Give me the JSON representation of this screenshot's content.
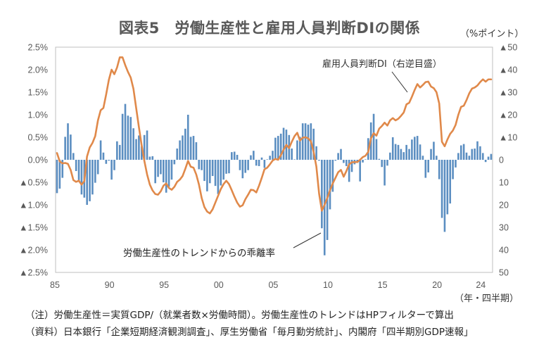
{
  "header": {
    "title": "図表5　労働生産性と雇用人員判断DIの関係",
    "right_unit": "（%ポイント）"
  },
  "annotations": {
    "di_label": "雇用人員判断DI（右逆目盛）",
    "productivity_label": "労働生産性のトレンドからの乖離率"
  },
  "notes": {
    "note": "（注）労働生産性＝実質GDP/（就業者数×労働時間）。労働生産性のトレンドはHPフィルターで算出",
    "source": "（資料）日本銀行「企業短期経済観測調査」、厚生労働省「毎月勤労統計」、内閣府「四半期別GDP速報」"
  },
  "colors": {
    "bar": "#5B8EC1",
    "line": "#E0894A",
    "frame": "#BFBFBF"
  },
  "chart_data": {
    "type": "bar",
    "title": "図表5　労働生産性と雇用人員判断DIの関係",
    "xlabel": "（年・四半期）",
    "x_frequency": "quarterly",
    "x_ticks": [
      {
        "label": "85",
        "index": 0
      },
      {
        "label": "90",
        "index": 20
      },
      {
        "label": "95",
        "index": 40
      },
      {
        "label": "00",
        "index": 60
      },
      {
        "label": "05",
        "index": 80
      },
      {
        "label": "10",
        "index": 100
      },
      {
        "label": "15",
        "index": 120
      },
      {
        "label": "20",
        "index": 140
      },
      {
        "label": "24",
        "index": 156
      }
    ],
    "left_axis": {
      "ylim": [
        -2.5,
        2.5
      ],
      "ticks": [
        2.5,
        2.0,
        1.5,
        1.0,
        0.5,
        0.0,
        -0.5,
        -1.0,
        -1.5,
        -2.0,
        -2.5
      ],
      "labels": [
        "2.5%",
        "2.0%",
        "1.5%",
        "1.0%",
        "0.5%",
        "0.0%",
        "▲0.5%",
        "▲1.0%",
        "▲1.5%",
        "▲2.0%",
        "▲2.5%"
      ]
    },
    "right_axis": {
      "ylim": [
        -50,
        50
      ],
      "reversed": true,
      "unit": "（%ポイント）",
      "ticks": [
        -50,
        -40,
        -30,
        -20,
        -10,
        0,
        10,
        20,
        30,
        40,
        50
      ],
      "labels": [
        "▲50",
        "▲40",
        "▲30",
        "▲20",
        "▲10",
        "0",
        "10",
        "20",
        "30",
        "40",
        "50"
      ]
    },
    "grid": false,
    "legend": "none (inline annotations)",
    "series": [
      {
        "name": "労働生産性のトレンドからの乖離率",
        "type": "bar",
        "axis": "left",
        "unit": "%",
        "values": [
          -0.74,
          -0.64,
          -0.4,
          0.51,
          0.81,
          0.56,
          0.15,
          -0.25,
          -0.48,
          -0.77,
          -0.84,
          -1.0,
          -0.92,
          -0.77,
          -0.51,
          -0.32,
          0.43,
          0.16,
          -0.09,
          -0.02,
          -0.44,
          -0.23,
          0.41,
          0.33,
          1.02,
          1.24,
          0.98,
          0.95,
          0.7,
          0.46,
          0.54,
          0.3,
          0.55,
          0.65,
          0.07,
          0.08,
          -0.52,
          -0.38,
          -0.32,
          -0.5,
          -0.73,
          -0.6,
          -0.44,
          -0.1,
          0.25,
          0.43,
          0.54,
          0.69,
          1.0,
          0.51,
          0.53,
          0.39,
          -0.21,
          -0.23,
          -0.47,
          -0.7,
          -0.52,
          -0.36,
          -0.58,
          -0.76,
          -0.57,
          -0.44,
          -0.31,
          -0.3,
          0.17,
          0.18,
          0.11,
          -0.23,
          -0.41,
          -0.29,
          -0.23,
          0.1,
          0.2,
          -0.13,
          -0.14,
          0.05,
          -0.18,
          0.01,
          0.09,
          0.2,
          0.49,
          0.53,
          0.58,
          0.71,
          0.67,
          0.55,
          0.25,
          0.01,
          0.43,
          0.51,
          0.81,
          0.81,
          0.78,
          0.81,
          0.69,
          0.3,
          -0.02,
          -1.52,
          -2.12,
          -1.78,
          -1.1,
          -0.71,
          -0.02,
          0.15,
          0.24,
          -0.07,
          -0.14,
          -0.49,
          -0.27,
          -0.1,
          -0.07,
          -0.48,
          -0.06,
          0.01,
          0.48,
          0.83,
          1.02,
          0.46,
          0.02,
          -0.16,
          -0.57,
          -0.13,
          0.16,
          0.5,
          0.35,
          0.33,
          0.24,
          0.17,
          0.33,
          0.24,
          0.45,
          0.51,
          0.53,
          0.34,
          0.09,
          -0.4,
          -0.28,
          0.24,
          0.4,
          0.09,
          -0.43,
          -1.29,
          -1.6,
          -1.21,
          -0.97,
          -0.43,
          -0.17,
          0.15,
          0.32,
          0.35,
          0.16,
          0.09,
          0.24,
          0.25,
          0.41,
          0.3,
          0.15,
          -0.05,
          0.07,
          0.13
        ]
      },
      {
        "name": "雇用人員判断DI（右逆目盛）",
        "type": "line",
        "axis": "right",
        "unit": "%ポイント",
        "values": [
          -3,
          0.7,
          1.6,
          1.4,
          1.8,
          4.5,
          9,
          9.8,
          9.3,
          11,
          9.5,
          -1.5,
          -5.5,
          -7.5,
          -10.5,
          -17.5,
          -22,
          -23,
          -29,
          -35.5,
          -40,
          -38,
          -41,
          -45.5,
          -45.5,
          -42,
          -39,
          -36.5,
          -31.5,
          -23,
          -14.5,
          -6.5,
          0.5,
          6.5,
          11,
          13.6,
          15.2,
          15.5,
          14,
          11.5,
          10.5,
          12.5,
          13.3,
          12,
          9.8,
          8.8,
          7.2,
          4,
          0.5,
          3.1,
          3.5,
          6.5,
          11,
          17,
          21,
          23,
          23.8,
          22,
          19,
          16,
          13,
          10.8,
          9.3,
          10.8,
          13.5,
          16.4,
          19,
          20.8,
          20.2,
          17.5,
          15.5,
          13.3,
          13.5,
          14.5,
          11.5,
          8,
          4.2,
          3.5,
          2,
          0.3,
          -0.4,
          0,
          -2,
          -4.5,
          -6.6,
          -5.2,
          -8,
          -10.5,
          -12,
          -8.5,
          -9.8,
          -10,
          -9.5,
          -8.2,
          -3.5,
          3,
          15,
          22.6,
          20,
          17,
          13.5,
          10.5,
          8,
          5.5,
          4.5,
          7.5,
          5,
          2,
          1.1,
          1,
          1,
          0,
          -1.2,
          -1.8,
          -3.5,
          -9.5,
          -11.8,
          -10.7,
          -13.8,
          -15,
          -16.5,
          -15.2,
          -17.5,
          -18.5,
          -17.5,
          -18.2,
          -19.5,
          -21,
          -24.6,
          -25.3,
          -28,
          -31,
          -33.6,
          -32.1,
          -33.2,
          -34.5,
          -34.7,
          -32.5,
          -31.8,
          -30,
          -25,
          -8,
          -6,
          -9,
          -11.5,
          -13,
          -15.5,
          -20,
          -23.5,
          -24,
          -26.5,
          -29.5,
          -31.6,
          -32.1,
          -33,
          -34.5,
          -35.7,
          -34.7,
          -35.7,
          -35.7
        ]
      }
    ]
  }
}
